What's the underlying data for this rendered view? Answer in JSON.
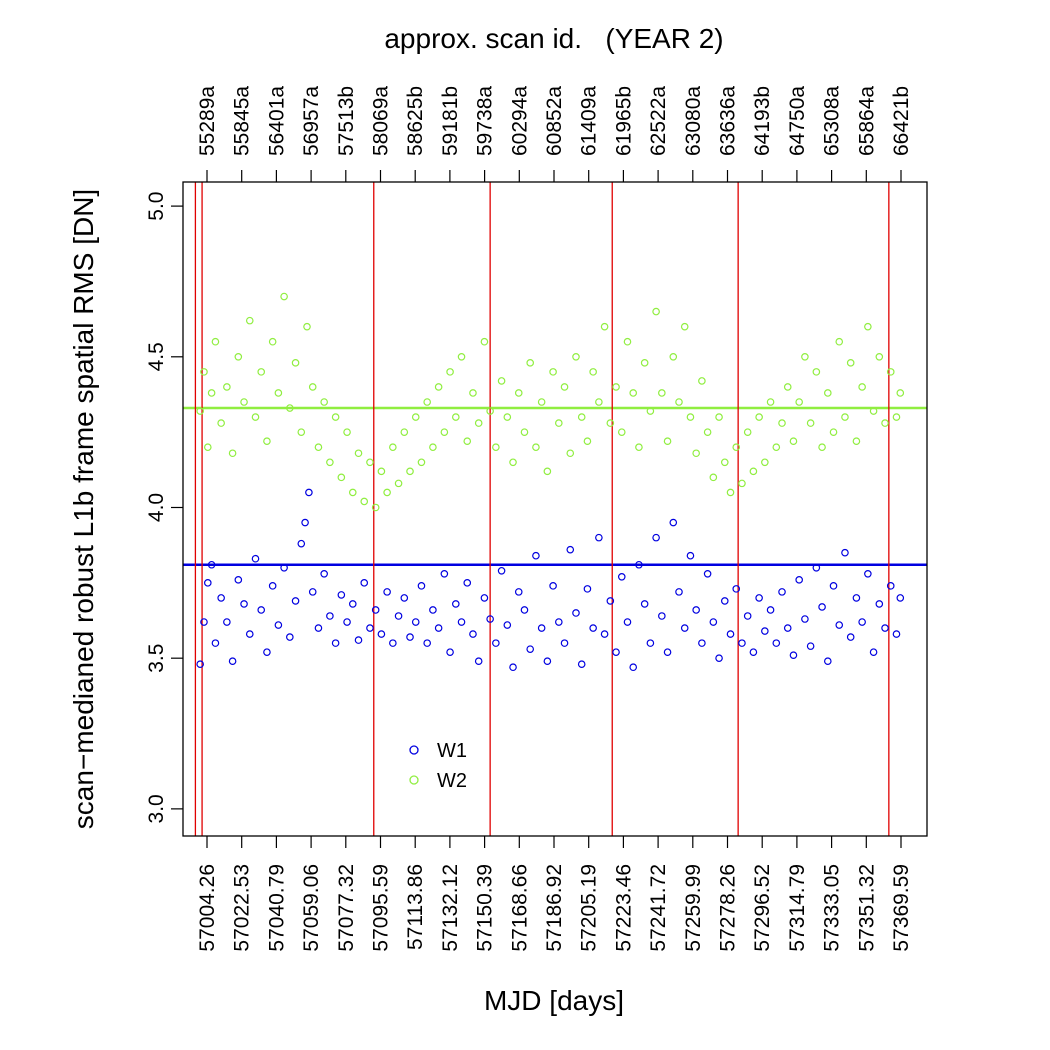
{
  "chart_data": {
    "type": "scatter",
    "title": "approx. scan id.   (YEAR 2)",
    "xlabel": "MJD [days]",
    "ylabel": "scan−medianed robust L1b frame spatial RMS [DN]",
    "xlim": [
      56995,
      57385
    ],
    "ylim": [
      2.91,
      5.08
    ],
    "grid": false,
    "legend_position": "bottom-center",
    "x_ticks": [
      "57004.26",
      "57022.53",
      "57040.79",
      "57059.06",
      "57077.32",
      "57095.59",
      "57113.86",
      "57132.12",
      "57150.39",
      "57168.66",
      "57186.92",
      "57205.19",
      "57223.46",
      "57241.72",
      "57259.99",
      "57278.26",
      "57296.52",
      "57314.79",
      "57333.05",
      "57351.32",
      "57369.59"
    ],
    "y_ticks": [
      "3.0",
      "3.5",
      "4.0",
      "4.5",
      "5.0"
    ],
    "top_ticks": [
      "55289a",
      "55845a",
      "56401a",
      "56957a",
      "57513b",
      "58069a",
      "58625b",
      "59181b",
      "59738a",
      "60294a",
      "60852a",
      "61409a",
      "61965b",
      "62522a",
      "63080a",
      "63636a",
      "64193b",
      "64750a",
      "65308a",
      "65864a",
      "66421b"
    ],
    "vertical_lines_x": [
      57001.5,
      57005,
      57095,
      57156,
      57220,
      57286,
      57365
    ],
    "vertical_line_color": "#e00000",
    "series": [
      {
        "name": "W1",
        "color": "#0000e0",
        "reference_y": 3.81,
        "points": [
          [
            57004,
            3.48
          ],
          [
            57006,
            3.62
          ],
          [
            57008,
            3.75
          ],
          [
            57010,
            3.81
          ],
          [
            57012,
            3.55
          ],
          [
            57015,
            3.7
          ],
          [
            57018,
            3.62
          ],
          [
            57021,
            3.49
          ],
          [
            57024,
            3.76
          ],
          [
            57027,
            3.68
          ],
          [
            57030,
            3.58
          ],
          [
            57033,
            3.83
          ],
          [
            57036,
            3.66
          ],
          [
            57039,
            3.52
          ],
          [
            57042,
            3.74
          ],
          [
            57045,
            3.61
          ],
          [
            57048,
            3.8
          ],
          [
            57051,
            3.57
          ],
          [
            57054,
            3.69
          ],
          [
            57057,
            3.88
          ],
          [
            57059,
            3.95
          ],
          [
            57061,
            4.05
          ],
          [
            57063,
            3.72
          ],
          [
            57066,
            3.6
          ],
          [
            57069,
            3.78
          ],
          [
            57072,
            3.64
          ],
          [
            57075,
            3.55
          ],
          [
            57078,
            3.71
          ],
          [
            57081,
            3.62
          ],
          [
            57084,
            3.68
          ],
          [
            57087,
            3.56
          ],
          [
            57090,
            3.75
          ],
          [
            57093,
            3.6
          ],
          [
            57096,
            3.66
          ],
          [
            57099,
            3.58
          ],
          [
            57102,
            3.72
          ],
          [
            57105,
            3.55
          ],
          [
            57108,
            3.64
          ],
          [
            57111,
            3.7
          ],
          [
            57114,
            3.57
          ],
          [
            57117,
            3.62
          ],
          [
            57120,
            3.74
          ],
          [
            57123,
            3.55
          ],
          [
            57126,
            3.66
          ],
          [
            57129,
            3.6
          ],
          [
            57132,
            3.78
          ],
          [
            57135,
            3.52
          ],
          [
            57138,
            3.68
          ],
          [
            57141,
            3.62
          ],
          [
            57144,
            3.75
          ],
          [
            57147,
            3.58
          ],
          [
            57150,
            3.49
          ],
          [
            57153,
            3.7
          ],
          [
            57156,
            3.63
          ],
          [
            57159,
            3.55
          ],
          [
            57162,
            3.79
          ],
          [
            57165,
            3.61
          ],
          [
            57168,
            3.47
          ],
          [
            57171,
            3.72
          ],
          [
            57174,
            3.66
          ],
          [
            57177,
            3.53
          ],
          [
            57180,
            3.84
          ],
          [
            57183,
            3.6
          ],
          [
            57186,
            3.49
          ],
          [
            57189,
            3.74
          ],
          [
            57192,
            3.62
          ],
          [
            57195,
            3.55
          ],
          [
            57198,
            3.86
          ],
          [
            57201,
            3.65
          ],
          [
            57204,
            3.48
          ],
          [
            57207,
            3.73
          ],
          [
            57210,
            3.6
          ],
          [
            57213,
            3.9
          ],
          [
            57216,
            3.58
          ],
          [
            57219,
            3.69
          ],
          [
            57222,
            3.52
          ],
          [
            57225,
            3.77
          ],
          [
            57228,
            3.62
          ],
          [
            57231,
            3.47
          ],
          [
            57234,
            3.81
          ],
          [
            57237,
            3.68
          ],
          [
            57240,
            3.55
          ],
          [
            57243,
            3.9
          ],
          [
            57246,
            3.64
          ],
          [
            57249,
            3.52
          ],
          [
            57252,
            3.95
          ],
          [
            57255,
            3.72
          ],
          [
            57258,
            3.6
          ],
          [
            57261,
            3.84
          ],
          [
            57264,
            3.66
          ],
          [
            57267,
            3.55
          ],
          [
            57270,
            3.78
          ],
          [
            57273,
            3.62
          ],
          [
            57276,
            3.5
          ],
          [
            57279,
            3.69
          ],
          [
            57282,
            3.58
          ],
          [
            57285,
            3.73
          ],
          [
            57288,
            3.55
          ],
          [
            57291,
            3.64
          ],
          [
            57294,
            3.52
          ],
          [
            57297,
            3.7
          ],
          [
            57300,
            3.59
          ],
          [
            57303,
            3.66
          ],
          [
            57306,
            3.55
          ],
          [
            57309,
            3.72
          ],
          [
            57312,
            3.6
          ],
          [
            57315,
            3.51
          ],
          [
            57318,
            3.76
          ],
          [
            57321,
            3.63
          ],
          [
            57324,
            3.54
          ],
          [
            57327,
            3.8
          ],
          [
            57330,
            3.67
          ],
          [
            57333,
            3.49
          ],
          [
            57336,
            3.74
          ],
          [
            57339,
            3.61
          ],
          [
            57342,
            3.85
          ],
          [
            57345,
            3.57
          ],
          [
            57348,
            3.7
          ],
          [
            57351,
            3.62
          ],
          [
            57354,
            3.78
          ],
          [
            57357,
            3.52
          ],
          [
            57360,
            3.68
          ],
          [
            57363,
            3.6
          ],
          [
            57366,
            3.74
          ],
          [
            57369,
            3.58
          ],
          [
            57371,
            3.7
          ]
        ]
      },
      {
        "name": "W2",
        "color": "#90ee40",
        "reference_y": 4.33,
        "points": [
          [
            57004,
            4.32
          ],
          [
            57006,
            4.45
          ],
          [
            57008,
            4.2
          ],
          [
            57010,
            4.38
          ],
          [
            57012,
            4.55
          ],
          [
            57015,
            4.28
          ],
          [
            57018,
            4.4
          ],
          [
            57021,
            4.18
          ],
          [
            57024,
            4.5
          ],
          [
            57027,
            4.35
          ],
          [
            57030,
            4.62
          ],
          [
            57033,
            4.3
          ],
          [
            57036,
            4.45
          ],
          [
            57039,
            4.22
          ],
          [
            57042,
            4.55
          ],
          [
            57045,
            4.38
          ],
          [
            57048,
            4.7
          ],
          [
            57051,
            4.33
          ],
          [
            57054,
            4.48
          ],
          [
            57057,
            4.25
          ],
          [
            57060,
            4.6
          ],
          [
            57063,
            4.4
          ],
          [
            57066,
            4.2
          ],
          [
            57069,
            4.35
          ],
          [
            57072,
            4.15
          ],
          [
            57075,
            4.3
          ],
          [
            57078,
            4.1
          ],
          [
            57081,
            4.25
          ],
          [
            57084,
            4.05
          ],
          [
            57087,
            4.18
          ],
          [
            57090,
            4.02
          ],
          [
            57093,
            4.15
          ],
          [
            57096,
            4.0
          ],
          [
            57099,
            4.12
          ],
          [
            57102,
            4.05
          ],
          [
            57105,
            4.2
          ],
          [
            57108,
            4.08
          ],
          [
            57111,
            4.25
          ],
          [
            57114,
            4.12
          ],
          [
            57117,
            4.3
          ],
          [
            57120,
            4.15
          ],
          [
            57123,
            4.35
          ],
          [
            57126,
            4.2
          ],
          [
            57129,
            4.4
          ],
          [
            57132,
            4.25
          ],
          [
            57135,
            4.45
          ],
          [
            57138,
            4.3
          ],
          [
            57141,
            4.5
          ],
          [
            57144,
            4.22
          ],
          [
            57147,
            4.38
          ],
          [
            57150,
            4.28
          ],
          [
            57153,
            4.55
          ],
          [
            57156,
            4.32
          ],
          [
            57159,
            4.2
          ],
          [
            57162,
            4.42
          ],
          [
            57165,
            4.3
          ],
          [
            57168,
            4.15
          ],
          [
            57171,
            4.38
          ],
          [
            57174,
            4.25
          ],
          [
            57177,
            4.48
          ],
          [
            57180,
            4.2
          ],
          [
            57183,
            4.35
          ],
          [
            57186,
            4.12
          ],
          [
            57189,
            4.45
          ],
          [
            57192,
            4.28
          ],
          [
            57195,
            4.4
          ],
          [
            57198,
            4.18
          ],
          [
            57201,
            4.5
          ],
          [
            57204,
            4.3
          ],
          [
            57207,
            4.22
          ],
          [
            57210,
            4.45
          ],
          [
            57213,
            4.35
          ],
          [
            57216,
            4.6
          ],
          [
            57219,
            4.28
          ],
          [
            57222,
            4.4
          ],
          [
            57225,
            4.25
          ],
          [
            57228,
            4.55
          ],
          [
            57231,
            4.38
          ],
          [
            57234,
            4.2
          ],
          [
            57237,
            4.48
          ],
          [
            57240,
            4.32
          ],
          [
            57243,
            4.65
          ],
          [
            57246,
            4.38
          ],
          [
            57249,
            4.22
          ],
          [
            57252,
            4.5
          ],
          [
            57255,
            4.35
          ],
          [
            57258,
            4.6
          ],
          [
            57261,
            4.3
          ],
          [
            57264,
            4.18
          ],
          [
            57267,
            4.42
          ],
          [
            57270,
            4.25
          ],
          [
            57273,
            4.1
          ],
          [
            57276,
            4.3
          ],
          [
            57279,
            4.15
          ],
          [
            57282,
            4.05
          ],
          [
            57285,
            4.2
          ],
          [
            57288,
            4.08
          ],
          [
            57291,
            4.25
          ],
          [
            57294,
            4.12
          ],
          [
            57297,
            4.3
          ],
          [
            57300,
            4.15
          ],
          [
            57303,
            4.35
          ],
          [
            57306,
            4.2
          ],
          [
            57309,
            4.28
          ],
          [
            57312,
            4.4
          ],
          [
            57315,
            4.22
          ],
          [
            57318,
            4.35
          ],
          [
            57321,
            4.5
          ],
          [
            57324,
            4.28
          ],
          [
            57327,
            4.45
          ],
          [
            57330,
            4.2
          ],
          [
            57333,
            4.38
          ],
          [
            57336,
            4.25
          ],
          [
            57339,
            4.55
          ],
          [
            57342,
            4.3
          ],
          [
            57345,
            4.48
          ],
          [
            57348,
            4.22
          ],
          [
            57351,
            4.4
          ],
          [
            57354,
            4.6
          ],
          [
            57357,
            4.32
          ],
          [
            57360,
            4.5
          ],
          [
            57363,
            4.28
          ],
          [
            57366,
            4.45
          ],
          [
            57369,
            4.3
          ],
          [
            57371,
            4.38
          ]
        ]
      }
    ]
  }
}
